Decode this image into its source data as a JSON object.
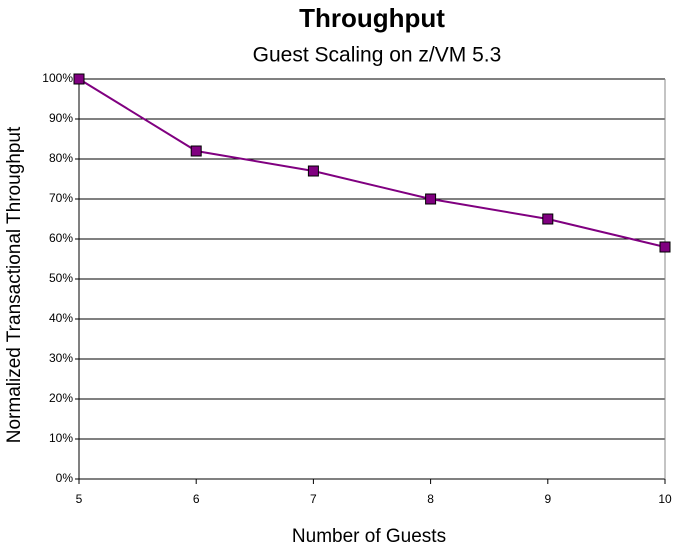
{
  "chart_data": {
    "type": "line",
    "title": "Throughput",
    "subtitle": "Guest Scaling on z/VM 5.3",
    "x_label": "Number of Guests",
    "y_label": "Normalized Transactional Throughput",
    "x": [
      5,
      6,
      7,
      8,
      9,
      10
    ],
    "series": [
      {
        "name": "Throughput",
        "color": "#800080",
        "values": [
          100,
          82,
          77,
          70,
          65,
          58
        ]
      }
    ],
    "xlim": [
      5,
      10
    ],
    "xticks": [
      5,
      6,
      7,
      8,
      9,
      10
    ],
    "ylim": [
      0,
      100
    ],
    "yticks": [
      {
        "value": 0,
        "label": "0%"
      },
      {
        "value": 10,
        "label": "10%"
      },
      {
        "value": 20,
        "label": "20%"
      },
      {
        "value": 30,
        "label": "30%"
      },
      {
        "value": 40,
        "label": "40%"
      },
      {
        "value": 50,
        "label": "50%"
      },
      {
        "value": 60,
        "label": "60%"
      },
      {
        "value": 70,
        "label": "70%"
      },
      {
        "value": 80,
        "label": "80%"
      },
      {
        "value": 90,
        "label": "90%"
      },
      {
        "value": 100,
        "label": "100%"
      }
    ],
    "grid": true,
    "legend": false
  }
}
